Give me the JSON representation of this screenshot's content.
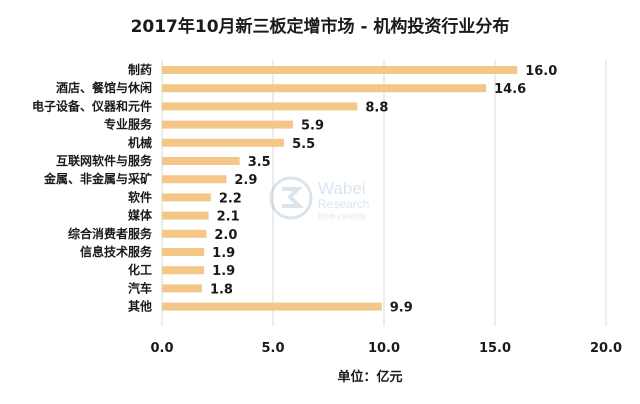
{
  "chart_data": {
    "type": "bar",
    "orientation": "horizontal",
    "title": "2017年10月新三板定增市场 - 机构投资行业分布",
    "xlabel": "单位：亿元",
    "ylabel": "",
    "categories": [
      "制药",
      "酒店、餐馆与休闲",
      "电子设备、仪器和元件",
      "专业服务",
      "机械",
      "互联网软件与服务",
      "金属、非金属与采矿",
      "软件",
      "媒体",
      "综合消费者服务",
      "信息技术服务",
      "化工",
      "汽车",
      "其他"
    ],
    "values": [
      16.0,
      14.6,
      8.8,
      5.9,
      5.5,
      3.5,
      2.9,
      2.2,
      2.1,
      2.0,
      1.9,
      1.9,
      1.8,
      9.9
    ],
    "value_labels": [
      "16.0",
      "14.6",
      "8.8",
      "5.9",
      "5.5",
      "3.5",
      "2.9",
      "2.2",
      "2.1",
      "2.0",
      "1.9",
      "1.9",
      "1.8",
      "9.9"
    ],
    "xlim": [
      0,
      20
    ],
    "xticks": [
      "0.0",
      "5.0",
      "10.0",
      "15.0",
      "20.0"
    ],
    "grid": true,
    "bar_color": "#f4c789"
  },
  "watermark": {
    "name": "Wabei",
    "subtitle": "Research",
    "tagline": "挖贝新三板研究院"
  }
}
